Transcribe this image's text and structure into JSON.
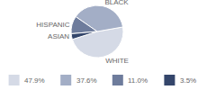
{
  "chart_data": {
    "type": "pie",
    "categories": [
      "WHITE",
      "BLACK",
      "HISPANIC",
      "ASIAN"
    ],
    "values": [
      47.9,
      37.6,
      11.0,
      3.5
    ],
    "value_labels": [
      "47.9%",
      "37.6%",
      "11.0%",
      "3.5%"
    ],
    "colors": [
      "#d5dae6",
      "#a3aec6",
      "#6e7c9c",
      "#34466b"
    ],
    "legend": "bottom"
  }
}
